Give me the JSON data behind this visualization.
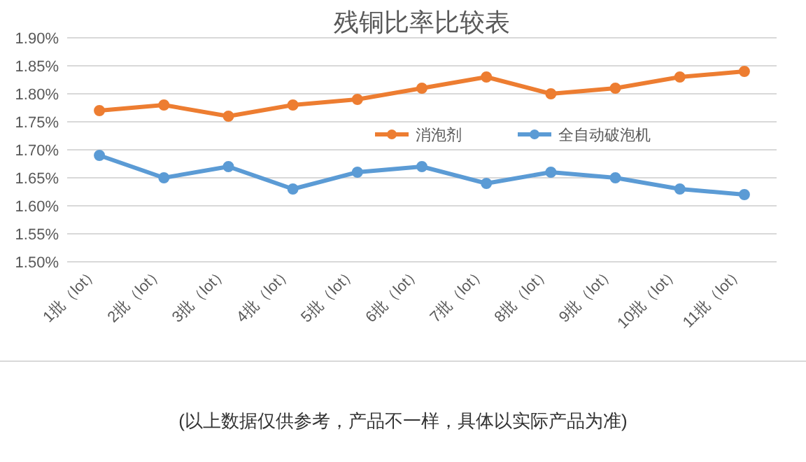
{
  "chart_data": {
    "type": "line",
    "title": "残铜比率比较表",
    "categories": [
      "1批（lot）",
      "2批（lot）",
      "3批（lot）",
      "4批（lot）",
      "5批（lot）",
      "6批（lot）",
      "7批（lot）",
      "8批（lot）",
      "9批（lot）",
      "10批（lot）",
      "11批（lot）"
    ],
    "series": [
      {
        "name": "消泡剂",
        "color": "#ed7d31",
        "values": [
          1.77,
          1.78,
          1.76,
          1.78,
          1.79,
          1.81,
          1.83,
          1.8,
          1.81,
          1.83,
          1.84
        ]
      },
      {
        "name": "全自动破泡机",
        "color": "#5b9bd5",
        "values": [
          1.69,
          1.65,
          1.67,
          1.63,
          1.66,
          1.67,
          1.64,
          1.66,
          1.65,
          1.63,
          1.62
        ]
      }
    ],
    "ylim": [
      1.5,
      1.9
    ],
    "yticks": [
      {
        "value": 1.5,
        "label": "1.50%"
      },
      {
        "value": 1.55,
        "label": "1.55%"
      },
      {
        "value": 1.6,
        "label": "1.60%"
      },
      {
        "value": 1.65,
        "label": "1.65%"
      },
      {
        "value": 1.7,
        "label": "1.70%"
      },
      {
        "value": 1.75,
        "label": "1.75%"
      },
      {
        "value": 1.8,
        "label": "1.80%"
      },
      {
        "value": 1.85,
        "label": "1.85%"
      },
      {
        "value": 1.9,
        "label": "1.90%"
      }
    ],
    "grid": true,
    "legend": "right",
    "marker": "circle",
    "annotations": [
      "(以上数据仅供参考，产品不一样，具体以实际产品为准)"
    ]
  }
}
